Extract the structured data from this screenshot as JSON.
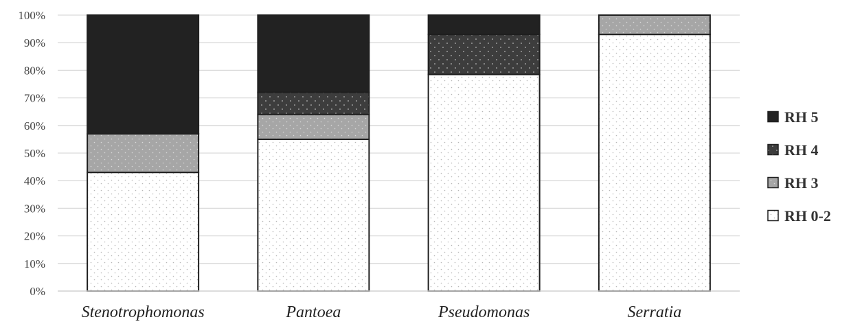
{
  "chart_data": {
    "type": "bar",
    "stacked": true,
    "percent": true,
    "categories": [
      "Stenotrophomonas",
      "Pantoea",
      "Pseudomonas",
      "Serratia"
    ],
    "series": [
      {
        "name": "RH 0-2",
        "values": [
          43,
          55,
          78.5,
          93
        ],
        "color": "#ffffff",
        "pattern": "dots-light"
      },
      {
        "name": "RH 3",
        "values": [
          14,
          9,
          0,
          7
        ],
        "color": "#a6a6a6",
        "pattern": "dots-light"
      },
      {
        "name": "RH 4",
        "values": [
          0,
          8,
          14.5,
          0
        ],
        "color": "#3d3d3d",
        "pattern": "dots-light"
      },
      {
        "name": "RH 5",
        "values": [
          43,
          28,
          7,
          0
        ],
        "color": "#222222",
        "pattern": "none"
      }
    ],
    "yticks": [
      "0%",
      "10%",
      "20%",
      "30%",
      "40%",
      "50%",
      "60%",
      "70%",
      "80%",
      "90%",
      "100%"
    ],
    "ylim": [
      0,
      100
    ],
    "grid": true,
    "legend": {
      "placement": "right",
      "order": [
        "RH 5",
        "RH 4",
        "RH 3",
        "RH 0-2"
      ]
    },
    "title": "",
    "xlabel": "",
    "ylabel": ""
  }
}
